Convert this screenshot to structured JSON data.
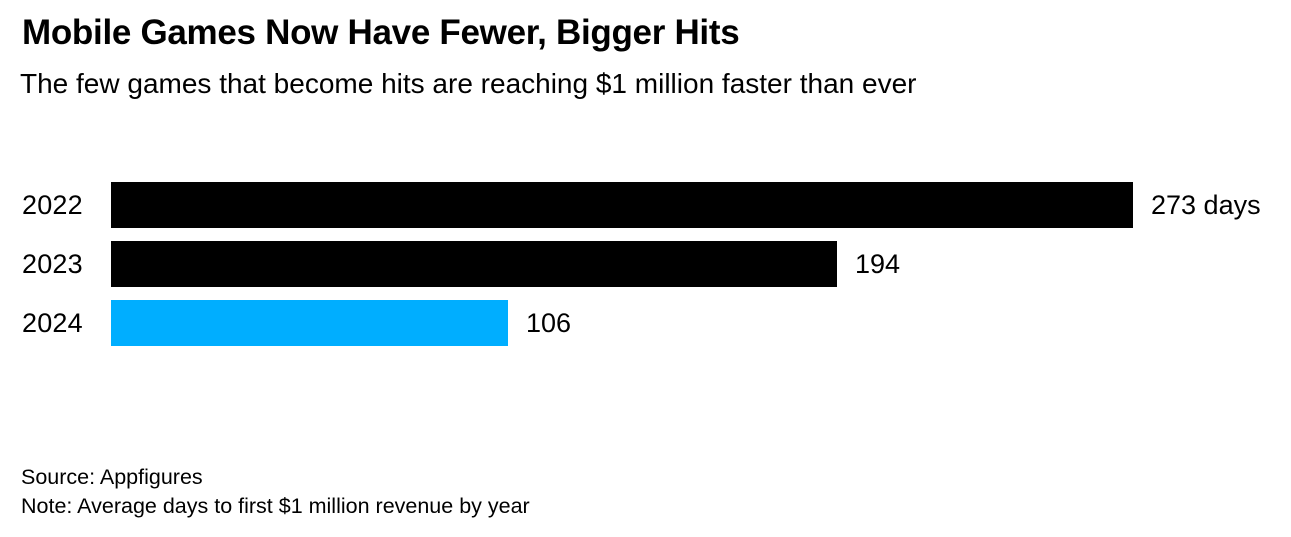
{
  "header": {
    "title": "Mobile Games Now Have Fewer, Bigger Hits",
    "subtitle": "The few games that become hits are reaching $1 million faster than ever"
  },
  "chart_data": {
    "type": "bar",
    "orientation": "horizontal",
    "title": "Mobile Games Now Have Fewer, Bigger Hits",
    "subtitle": "The few games that become hits are reaching $1 million faster than ever",
    "categories": [
      "2022",
      "2023",
      "2024"
    ],
    "values": [
      273,
      194,
      106
    ],
    "value_labels": [
      "273 days",
      "194",
      "106"
    ],
    "bar_colors": [
      "#000000",
      "#000000",
      "#00aeff"
    ],
    "unit": "days",
    "xlabel": "",
    "ylabel": "",
    "xlim": [
      0,
      273
    ],
    "grid": false,
    "legend": false
  },
  "colors": {
    "accent_blue": "#00aeff",
    "bar_black": "#000000",
    "background": "#ffffff",
    "text": "#000000"
  },
  "footer": {
    "source": "Source: Appfigures",
    "note": "Note: Average days to first $1 million revenue by year"
  }
}
